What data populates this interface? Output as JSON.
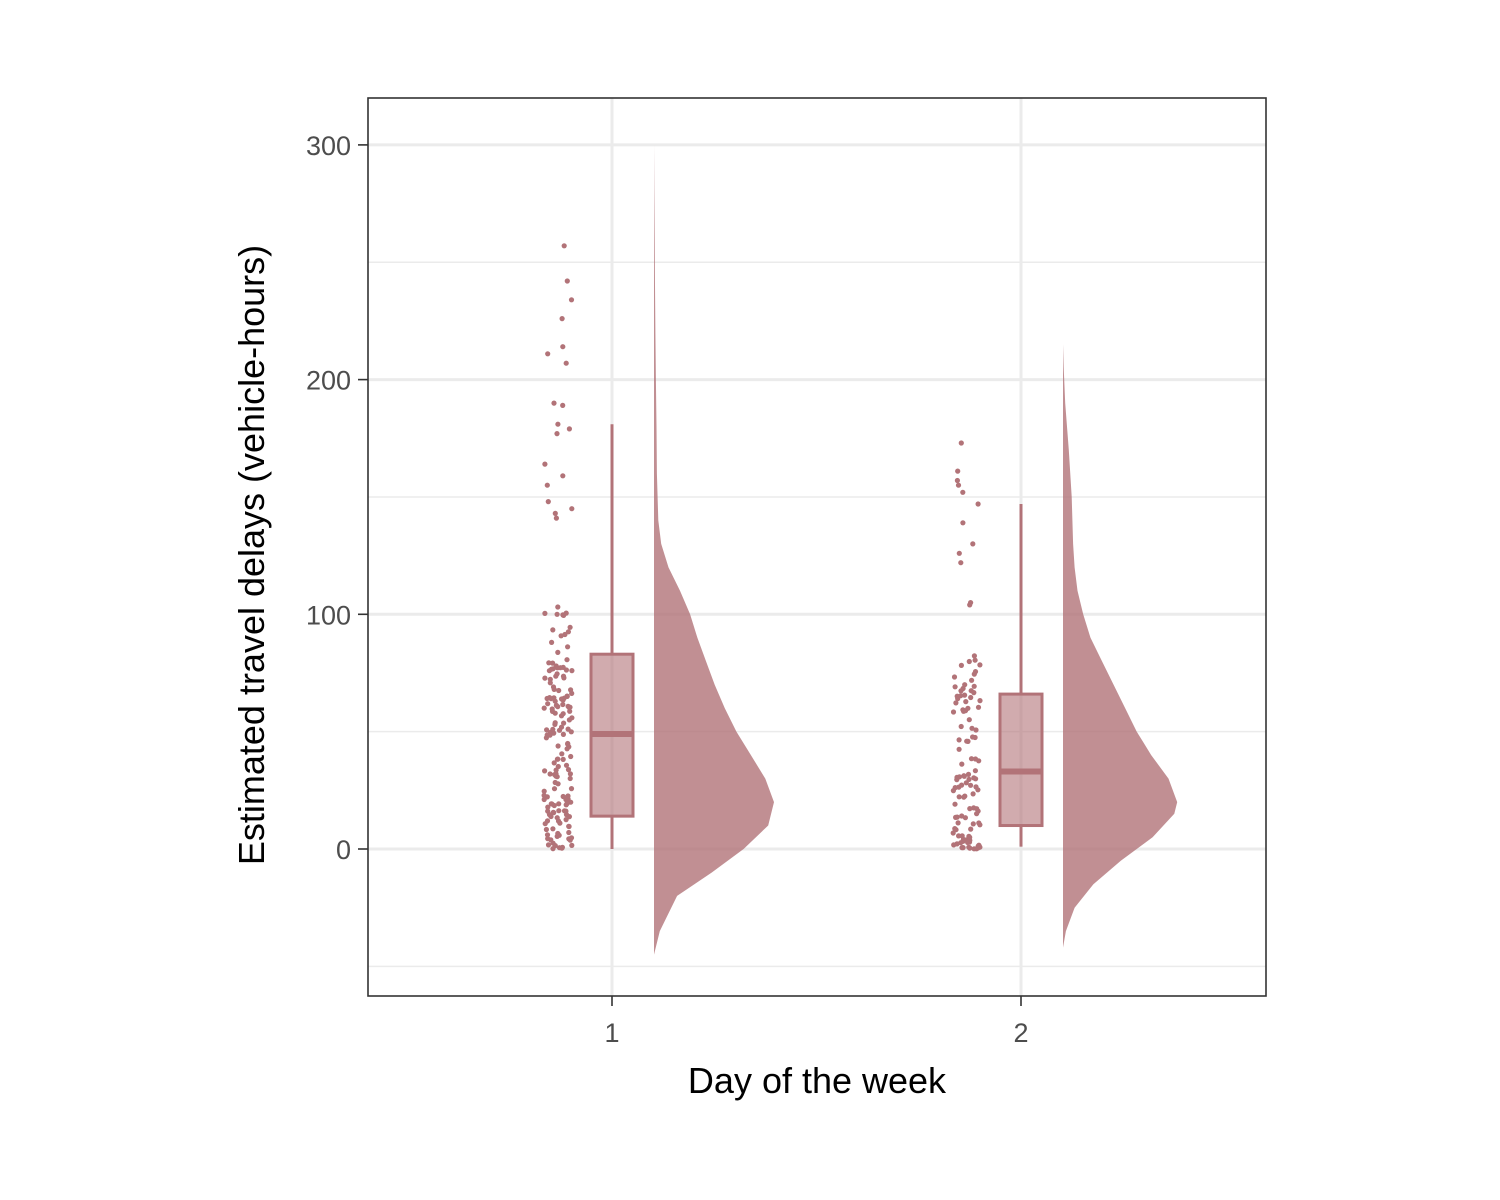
{
  "chart_data": {
    "type": "raincloud",
    "xlabel": "Day of the week",
    "ylabel": "Estimated travel delays (vehicle-hours)",
    "categories": [
      "1",
      "2"
    ],
    "ylim": [
      -62,
      320
    ],
    "yticks": [
      0,
      100,
      200,
      300
    ],
    "y_minor_gridlines": [
      -50,
      50,
      150,
      250
    ],
    "grid": true,
    "legend": "none",
    "fill_color": "#b27378",
    "groups": [
      {
        "category": "1",
        "box": {
          "min": 0,
          "q1": 14,
          "median": 49,
          "q3": 83,
          "max": 181
        },
        "outliers": [
          257,
          242,
          234,
          226,
          214,
          211,
          207,
          190,
          189,
          181,
          179,
          177,
          164,
          159,
          155,
          148,
          145,
          143,
          141
        ],
        "point_count": 180,
        "density": {
          "y": [
            -45,
            -35,
            -20,
            -10,
            0,
            10,
            20,
            30,
            40,
            50,
            60,
            70,
            80,
            90,
            100,
            110,
            120,
            130,
            140,
            160,
            180,
            200,
            220,
            240,
            260,
            280,
            300
          ],
          "width": [
            0.0,
            0.04,
            0.16,
            0.4,
            0.62,
            0.79,
            0.83,
            0.77,
            0.67,
            0.57,
            0.49,
            0.42,
            0.36,
            0.3,
            0.25,
            0.18,
            0.1,
            0.05,
            0.03,
            0.02,
            0.017,
            0.013,
            0.01,
            0.007,
            0.005,
            0.002,
            0.0
          ]
        }
      },
      {
        "category": "2",
        "box": {
          "min": 1,
          "q1": 10,
          "median": 33,
          "q3": 66,
          "max": 147
        },
        "outliers": [
          173,
          161,
          157,
          155,
          152,
          147,
          139,
          130,
          126,
          122,
          105,
          104
        ],
        "point_count": 120,
        "density": {
          "y": [
            -42,
            -35,
            -25,
            -15,
            -5,
            5,
            15,
            20,
            30,
            40,
            50,
            60,
            70,
            80,
            90,
            100,
            110,
            120,
            130,
            150,
            170,
            190,
            205,
            215
          ],
          "width": [
            0.0,
            0.02,
            0.08,
            0.21,
            0.4,
            0.62,
            0.77,
            0.79,
            0.73,
            0.61,
            0.51,
            0.43,
            0.35,
            0.27,
            0.19,
            0.14,
            0.1,
            0.08,
            0.07,
            0.06,
            0.04,
            0.015,
            0.005,
            0.0
          ]
        }
      }
    ]
  }
}
